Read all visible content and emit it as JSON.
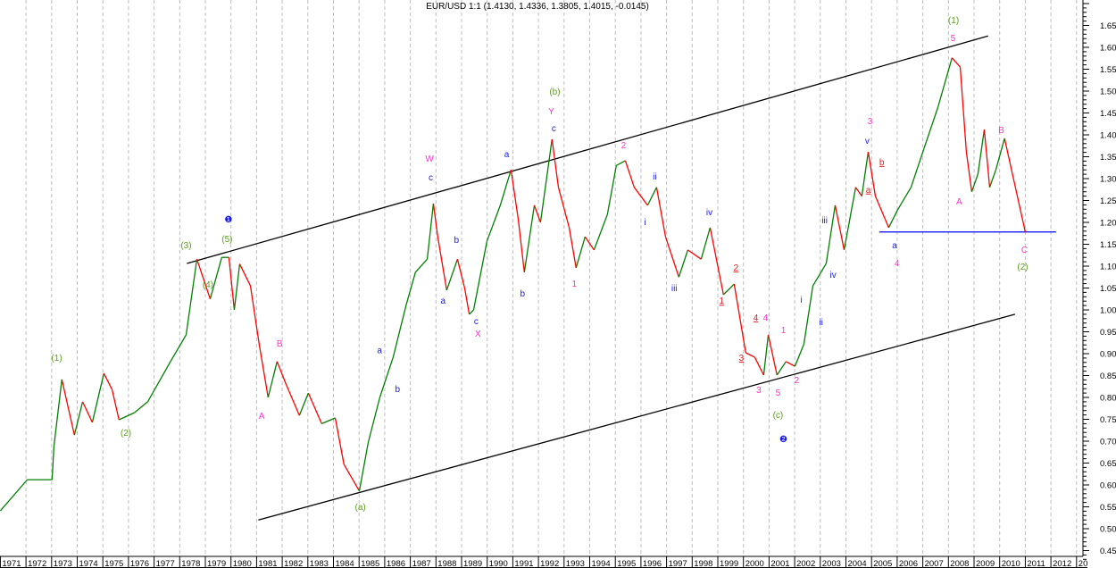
{
  "chart_data": {
    "type": "line",
    "title": "EUR/USD 1:1 (1.4130, 1.4336, 1.3805, 1.4015, -0.0145)",
    "xlabel": "",
    "ylabel": "",
    "xlim": [
      1971,
      2013
    ],
    "ylim": [
      0.43,
      1.71
    ],
    "grid": "vertical dashed at year boundaries",
    "y_axis_side": "right",
    "x_tick_labels": [
      "1971",
      "1972",
      "1973",
      "1974",
      "1975",
      "1976",
      "1977",
      "1978",
      "1979",
      "1980",
      "1981",
      "1982",
      "1983",
      "1984",
      "1985",
      "1986",
      "1987",
      "1988",
      "1989",
      "1990",
      "1991",
      "1992",
      "1993",
      "1994",
      "1995",
      "1996",
      "1997",
      "1998",
      "1999",
      "2000",
      "2001",
      "2002",
      "2003",
      "2004",
      "2005",
      "2006",
      "2007",
      "2008",
      "2009",
      "2010",
      "2011",
      "2012",
      "20"
    ],
    "y_tick_labels": [
      "0.45",
      "0.50",
      "0.55",
      "0.60",
      "0.65",
      "0.70",
      "0.75",
      "0.80",
      "0.85",
      "0.90",
      "0.95",
      "1.00",
      "1.05",
      "1.10",
      "1.15",
      "1.20",
      "1.25",
      "1.30",
      "1.35",
      "1.40",
      "1.45",
      "1.50",
      "1.55",
      "1.60",
      "1.65"
    ],
    "colors": {
      "up": "#008000",
      "down": "#ff0000",
      "channel": "#000000",
      "support": "#0000ff"
    },
    "series": [
      {
        "points": [
          [
            1971.0,
            0.541
          ],
          [
            1972.05,
            0.612
          ],
          [
            1973.02,
            0.612
          ],
          [
            1973.09,
            0.688
          ],
          [
            1973.4,
            0.841
          ],
          [
            1973.89,
            0.714
          ],
          [
            1974.21,
            0.79
          ],
          [
            1974.59,
            0.743
          ],
          [
            1975.04,
            0.855
          ],
          [
            1975.36,
            0.818
          ],
          [
            1975.63,
            0.749
          ],
          [
            1976.23,
            0.765
          ],
          [
            1976.75,
            0.79
          ],
          [
            1977.62,
            0.88
          ],
          [
            1978.25,
            0.943
          ],
          [
            1978.67,
            1.116
          ],
          [
            1979.19,
            1.025
          ],
          [
            1979.64,
            1.12
          ],
          [
            1979.92,
            1.12
          ],
          [
            1980.13,
            1.0
          ],
          [
            1980.34,
            1.105
          ],
          [
            1980.76,
            1.055
          ],
          [
            1981.1,
            0.922
          ],
          [
            1981.45,
            0.8
          ],
          [
            1981.8,
            0.882
          ],
          [
            1982.15,
            0.83
          ],
          [
            1982.67,
            0.759
          ],
          [
            1983.02,
            0.81
          ],
          [
            1983.54,
            0.74
          ],
          [
            1984.07,
            0.753
          ],
          [
            1984.41,
            0.647
          ],
          [
            1985.01,
            0.586
          ],
          [
            1985.36,
            0.698
          ],
          [
            1985.81,
            0.8
          ],
          [
            1986.33,
            0.892
          ],
          [
            1986.85,
            1.014
          ],
          [
            1987.2,
            1.086
          ],
          [
            1987.66,
            1.116
          ],
          [
            1987.9,
            1.243
          ],
          [
            1988.07,
            1.167
          ],
          [
            1988.42,
            1.045
          ],
          [
            1988.84,
            1.116
          ],
          [
            1989.12,
            1.05
          ],
          [
            1989.3,
            0.99
          ],
          [
            1989.47,
            1.0
          ],
          [
            1989.99,
            1.157
          ],
          [
            1990.51,
            1.239
          ],
          [
            1990.93,
            1.32
          ],
          [
            1991.21,
            1.208
          ],
          [
            1991.45,
            1.086
          ],
          [
            1991.84,
            1.239
          ],
          [
            1992.08,
            1.2
          ],
          [
            1992.53,
            1.39
          ],
          [
            1992.78,
            1.28
          ],
          [
            1993.2,
            1.188
          ],
          [
            1993.47,
            1.096
          ],
          [
            1993.82,
            1.167
          ],
          [
            1994.17,
            1.137
          ],
          [
            1994.69,
            1.218
          ],
          [
            1995.04,
            1.33
          ],
          [
            1995.39,
            1.341
          ],
          [
            1995.74,
            1.28
          ],
          [
            1996.26,
            1.239
          ],
          [
            1996.61,
            1.28
          ],
          [
            1996.96,
            1.167
          ],
          [
            1997.48,
            1.075
          ],
          [
            1997.83,
            1.137
          ],
          [
            1998.35,
            1.116
          ],
          [
            1998.7,
            1.188
          ],
          [
            1999.22,
            1.035
          ],
          [
            1999.64,
            1.059
          ],
          [
            2000.09,
            0.902
          ],
          [
            2000.44,
            0.892
          ],
          [
            2000.79,
            0.851
          ],
          [
            2000.97,
            0.943
          ],
          [
            2001.31,
            0.851
          ],
          [
            2001.66,
            0.882
          ],
          [
            2002.01,
            0.871
          ],
          [
            2002.36,
            0.922
          ],
          [
            2002.71,
            1.055
          ],
          [
            2003.23,
            1.106
          ],
          [
            2003.58,
            1.239
          ],
          [
            2003.93,
            1.137
          ],
          [
            2004.38,
            1.28
          ],
          [
            2004.62,
            1.26
          ],
          [
            2004.87,
            1.361
          ],
          [
            2005.15,
            1.26
          ],
          [
            2005.67,
            1.188
          ],
          [
            2006.02,
            1.229
          ],
          [
            2006.54,
            1.28
          ],
          [
            2007.06,
            1.371
          ],
          [
            2007.59,
            1.463
          ],
          [
            2008.14,
            1.576
          ],
          [
            2008.46,
            1.555
          ],
          [
            2008.7,
            1.361
          ],
          [
            2008.91,
            1.27
          ],
          [
            2009.15,
            1.31
          ],
          [
            2009.4,
            1.412
          ],
          [
            2009.61,
            1.28
          ],
          [
            2009.85,
            1.32
          ],
          [
            2010.19,
            1.392
          ],
          [
            2011.0,
            1.178
          ]
        ]
      }
    ],
    "trendlines": [
      {
        "name": "upper-channel",
        "from": [
          1978.28,
          1.106
        ],
        "to": [
          2009.55,
          1.626
        ],
        "color": "#000000"
      },
      {
        "name": "lower-channel",
        "from": [
          1981.07,
          0.52
        ],
        "to": [
          2010.6,
          0.99
        ],
        "color": "#000000"
      },
      {
        "name": "support-line",
        "from": [
          2005.3,
          1.178
        ],
        "to": [
          2012.2,
          1.178
        ],
        "color": "#0000ff"
      }
    ],
    "annotations": [
      {
        "text": "(1)",
        "x": 1973.2,
        "y": 0.892,
        "color": "#5a9e1a"
      },
      {
        "text": "(2)",
        "x": 1975.9,
        "y": 0.72,
        "color": "#5a9e1a"
      },
      {
        "text": "(3)",
        "x": 1978.25,
        "y": 1.149,
        "color": "#5a9e1a"
      },
      {
        "text": "(4)",
        "x": 1979.1,
        "y": 1.059,
        "color": "#5a9e1a"
      },
      {
        "text": "(5)",
        "x": 1979.85,
        "y": 1.163,
        "color": "#5a9e1a"
      },
      {
        "text": "❶",
        "x": 1979.9,
        "y": 1.208,
        "color": "#1a1aee"
      },
      {
        "text": "A",
        "x": 1981.2,
        "y": 0.759,
        "color": "#ff33cc"
      },
      {
        "text": "B",
        "x": 1981.9,
        "y": 0.925,
        "color": "#ff33cc"
      },
      {
        "text": "(a)",
        "x": 1985.05,
        "y": 0.551,
        "color": "#5a9e1a"
      },
      {
        "text": "a",
        "x": 1985.8,
        "y": 0.909,
        "color": "#1a1aee"
      },
      {
        "text": "b",
        "x": 1986.5,
        "y": 0.82,
        "color": "#1a1aee"
      },
      {
        "text": "W",
        "x": 1987.75,
        "y": 1.347,
        "color": "#ff33cc"
      },
      {
        "text": "c",
        "x": 1987.8,
        "y": 1.304,
        "color": "#1a1aee"
      },
      {
        "text": "b",
        "x": 1988.8,
        "y": 1.161,
        "color": "#1a1aee"
      },
      {
        "text": "a",
        "x": 1988.28,
        "y": 1.022,
        "color": "#1a1aee"
      },
      {
        "text": "c",
        "x": 1989.57,
        "y": 0.976,
        "color": "#1a1aee"
      },
      {
        "text": "X",
        "x": 1989.64,
        "y": 0.947,
        "color": "#ff33cc"
      },
      {
        "text": "a",
        "x": 1990.76,
        "y": 1.357,
        "color": "#1a1aee"
      },
      {
        "text": "b",
        "x": 1991.38,
        "y": 1.039,
        "color": "#1a1aee"
      },
      {
        "text": "(b)",
        "x": 1992.64,
        "y": 1.5,
        "color": "#5a9e1a"
      },
      {
        "text": "Y",
        "x": 1992.5,
        "y": 1.455,
        "color": "#ff33cc"
      },
      {
        "text": "c",
        "x": 1992.6,
        "y": 1.416,
        "color": "#1a1aee"
      },
      {
        "text": "1",
        "x": 1993.4,
        "y": 1.061,
        "color": "#ff33cc"
      },
      {
        "text": "2",
        "x": 1995.32,
        "y": 1.378,
        "color": "#ff33cc"
      },
      {
        "text": "ii",
        "x": 1996.54,
        "y": 1.306,
        "color": "#1a1aee"
      },
      {
        "text": "i",
        "x": 1996.16,
        "y": 1.202,
        "color": "#1a1aee"
      },
      {
        "text": "iii",
        "x": 1997.3,
        "y": 1.051,
        "color": "#1a1aee"
      },
      {
        "text": "iv",
        "x": 1998.67,
        "y": 1.224,
        "color": "#1a1aee"
      },
      {
        "text": "2",
        "x": 1999.71,
        "y": 1.098,
        "color": "#e02020",
        "underline": true
      },
      {
        "text": "1",
        "x": 1999.15,
        "y": 1.022,
        "color": "#e02020",
        "underline": true
      },
      {
        "text": "4",
        "x": 2000.48,
        "y": 0.984,
        "color": "#e02020",
        "underline": true
      },
      {
        "text": "4",
        "x": 2000.86,
        "y": 0.984,
        "color": "#ff33cc"
      },
      {
        "text": "3",
        "x": 1999.92,
        "y": 0.892,
        "color": "#e02020",
        "underline": true
      },
      {
        "text": "1",
        "x": 2001.56,
        "y": 0.955,
        "color": "#ff33cc"
      },
      {
        "text": "3",
        "x": 2000.6,
        "y": 0.818,
        "color": "#ff33cc"
      },
      {
        "text": "5",
        "x": 2001.35,
        "y": 0.812,
        "color": "#ff33cc"
      },
      {
        "text": "2",
        "x": 2002.08,
        "y": 0.841,
        "color": "#ff33cc"
      },
      {
        "text": "(c)",
        "x": 2001.35,
        "y": 0.761,
        "color": "#5a9e1a"
      },
      {
        "text": "❷",
        "x": 2001.56,
        "y": 0.706,
        "color": "#1a1aee"
      },
      {
        "text": "i",
        "x": 2002.26,
        "y": 1.024,
        "color": "#1a1aee"
      },
      {
        "text": "ii",
        "x": 2003.03,
        "y": 0.973,
        "color": "#1a1aee"
      },
      {
        "text": "iii",
        "x": 2003.17,
        "y": 1.206,
        "color": "#1a1aee"
      },
      {
        "text": "iv",
        "x": 2003.5,
        "y": 1.082,
        "color": "#1a1aee"
      },
      {
        "text": "3",
        "x": 2004.94,
        "y": 1.433,
        "color": "#ff33cc"
      },
      {
        "text": "v",
        "x": 2004.83,
        "y": 1.388,
        "color": "#1a1aee"
      },
      {
        "text": "b",
        "x": 2005.4,
        "y": 1.339,
        "color": "#e02020",
        "underline": true
      },
      {
        "text": "a",
        "x": 2004.87,
        "y": 1.276,
        "color": "#e02020",
        "underline": true
      },
      {
        "text": "a",
        "x": 2005.9,
        "y": 1.149,
        "color": "#1a1aee"
      },
      {
        "text": "4",
        "x": 2005.99,
        "y": 1.108,
        "color": "#ff33cc"
      },
      {
        "text": "(1)",
        "x": 2008.2,
        "y": 1.663,
        "color": "#5a9e1a"
      },
      {
        "text": "5",
        "x": 2008.18,
        "y": 1.622,
        "color": "#ff33cc"
      },
      {
        "text": "A",
        "x": 2008.42,
        "y": 1.249,
        "color": "#ff33cc"
      },
      {
        "text": "B",
        "x": 2010.06,
        "y": 1.412,
        "color": "#ff33cc"
      },
      {
        "text": "C",
        "x": 2010.97,
        "y": 1.139,
        "color": "#ff33cc"
      },
      {
        "text": "(2)",
        "x": 2010.9,
        "y": 1.1,
        "color": "#5a9e1a"
      }
    ]
  }
}
